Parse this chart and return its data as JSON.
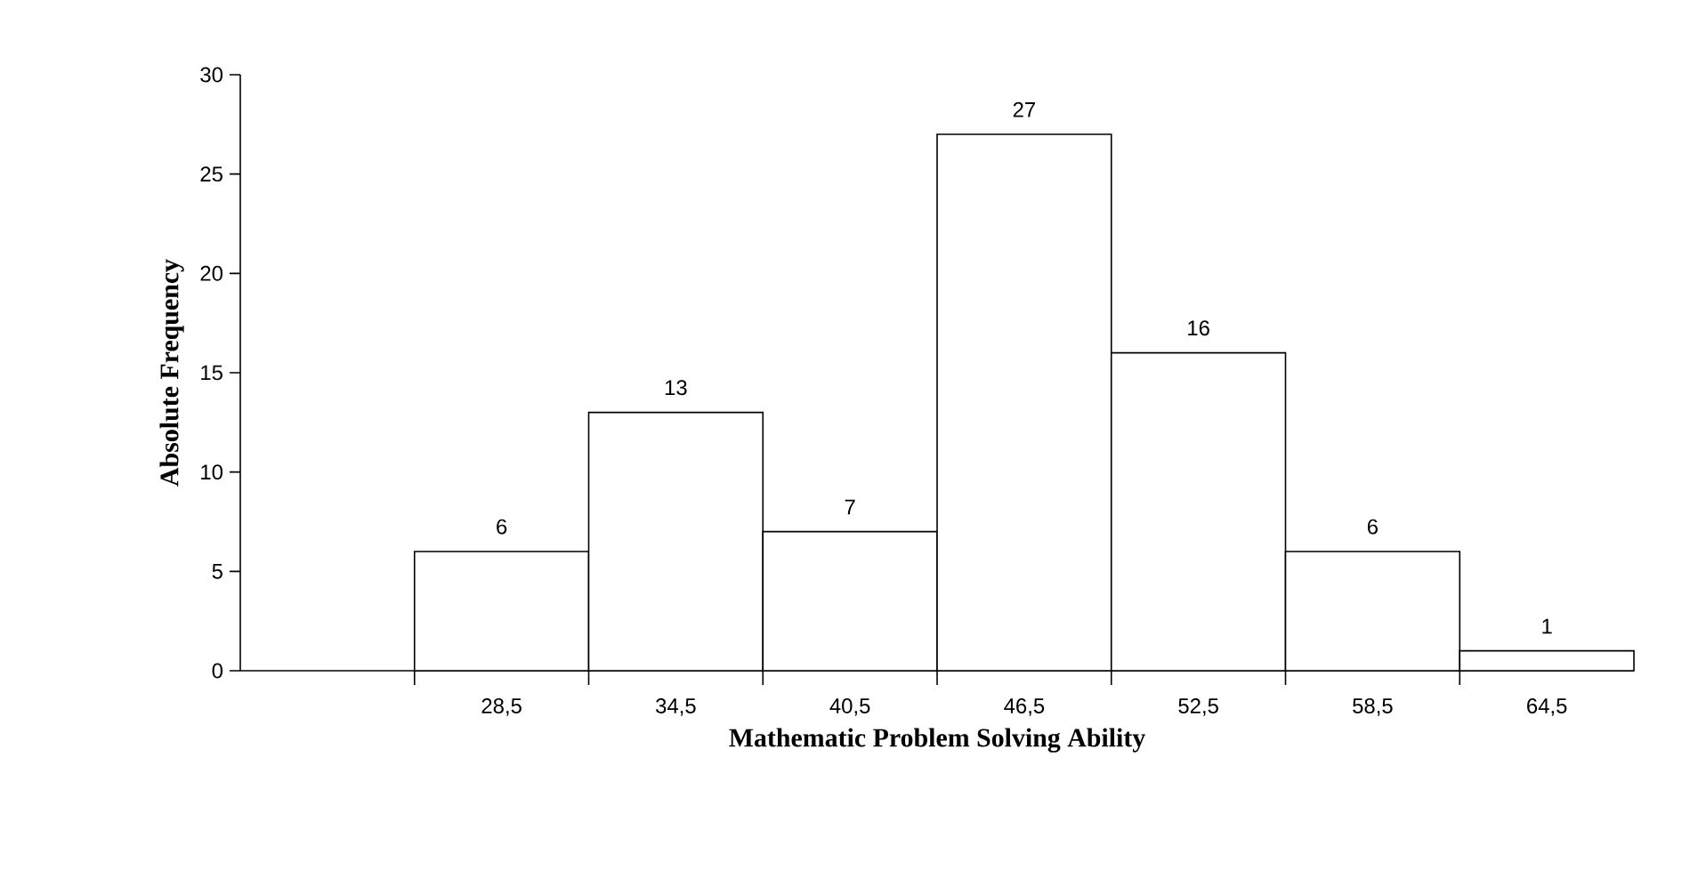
{
  "chart_data": {
    "type": "bar",
    "xlabel": "Mathematic Problem Solving Ability",
    "ylabel": "Absolute Frequency",
    "categories": [
      null,
      "28,5",
      "34,5",
      "40,5",
      "46,5",
      "52,5",
      "58,5",
      "64,5"
    ],
    "values": [
      null,
      6,
      13,
      7,
      27,
      16,
      6,
      1
    ],
    "color": "#ffffff",
    "ylim": [
      0,
      30
    ],
    "yticks": [
      0,
      5,
      10,
      15,
      20,
      25,
      30
    ],
    "data_labels": true,
    "grid": false
  }
}
